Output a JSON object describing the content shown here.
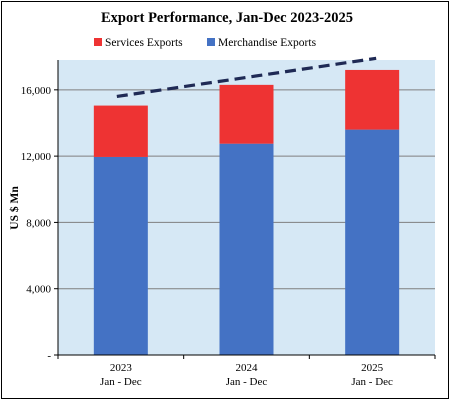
{
  "chart_data": {
    "type": "bar",
    "stacked": true,
    "title": "Export Performance, Jan-Dec  2023-2025",
    "ylabel": "US $ Mn",
    "xlabel": "",
    "categories": [
      [
        "2023",
        "Jan - Dec"
      ],
      [
        "2024",
        "Jan - Dec"
      ],
      [
        "2025",
        "Jan - Dec"
      ]
    ],
    "series": [
      {
        "name": "Merchandise Exports",
        "color": "#4472C4",
        "values": [
          11950,
          12750,
          13600
        ]
      },
      {
        "name": "Services Exports",
        "color": "#EE3333",
        "values": [
          3100,
          3550,
          3600
        ]
      }
    ],
    "legend_order": [
      "Services Exports",
      "Merchandise Exports"
    ],
    "legend_position": "top",
    "ylim": [
      0,
      17800
    ],
    "yticks": [
      0,
      4000,
      8000,
      12000,
      16000
    ],
    "ytick_labels": [
      "-",
      "4,000",
      "8,000",
      "12,000",
      "16,000"
    ],
    "grid": true,
    "trendline": {
      "style": "dashed",
      "color": "#1F2A55",
      "y_start": 15600,
      "y_end": 17900
    },
    "plot_background": "#D6E8F5"
  }
}
